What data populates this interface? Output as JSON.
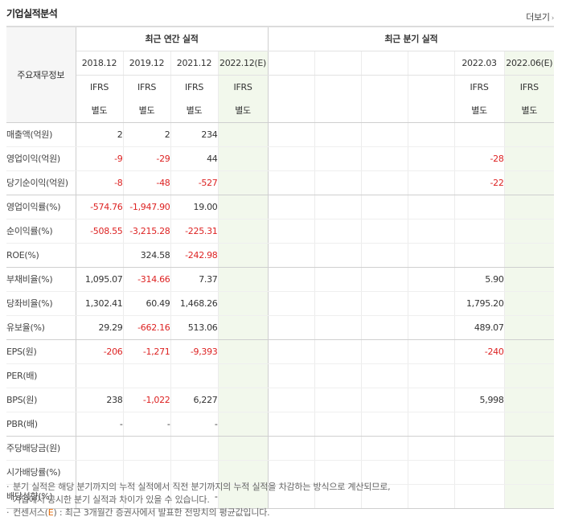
{
  "section": {
    "title": "기업실적분석",
    "more_label": "더보기",
    "more_icon": "chevron-right-icon"
  },
  "header": {
    "metric_col_label": "주요재무정보",
    "annual_group_label": "최근 연간 실적",
    "quarterly_group_label": "최근 분기 실적",
    "annual_periods": [
      "2018.12",
      "2019.12",
      "2021.12",
      "2022.12(E)"
    ],
    "quarterly_periods": [
      "",
      "",
      "",
      "",
      "2022.03",
      "2022.06(E)"
    ],
    "annual_ifrs": [
      {
        "top": "IFRS",
        "bottom": "별도"
      },
      {
        "top": "IFRS",
        "bottom": "별도"
      },
      {
        "top": "IFRS",
        "bottom": "별도"
      },
      {
        "top": "IFRS",
        "bottom": "별도"
      }
    ],
    "quarterly_ifrs": [
      {
        "top": "",
        "bottom": ""
      },
      {
        "top": "",
        "bottom": ""
      },
      {
        "top": "",
        "bottom": ""
      },
      {
        "top": "",
        "bottom": ""
      },
      {
        "top": "IFRS",
        "bottom": "별도"
      },
      {
        "top": "IFRS",
        "bottom": "별도"
      }
    ]
  },
  "rows": [
    {
      "label": "매출액(억원)",
      "annual": [
        "2",
        "2",
        "234",
        ""
      ],
      "quarterly": [
        "",
        "",
        "",
        "",
        "",
        ""
      ]
    },
    {
      "label": "영업이익(억원)",
      "annual": [
        "-9",
        "-29",
        "44",
        ""
      ],
      "quarterly": [
        "",
        "",
        "",
        "",
        "-28",
        ""
      ]
    },
    {
      "label": "당기순이익(억원)",
      "annual": [
        "-8",
        "-48",
        "-527",
        ""
      ],
      "quarterly": [
        "",
        "",
        "",
        "",
        "-22",
        ""
      ]
    },
    {
      "label": "영업이익률(%)",
      "annual": [
        "-574.76",
        "-1,947.90",
        "19.00",
        ""
      ],
      "quarterly": [
        "",
        "",
        "",
        "",
        "",
        ""
      ]
    },
    {
      "label": "순이익률(%)",
      "annual": [
        "-508.55",
        "-3,215.28",
        "-225.31",
        ""
      ],
      "quarterly": [
        "",
        "",
        "",
        "",
        "",
        ""
      ]
    },
    {
      "label": "ROE(%)",
      "annual": [
        "",
        "324.58",
        "-242.98",
        ""
      ],
      "quarterly": [
        "",
        "",
        "",
        "",
        "",
        ""
      ]
    },
    {
      "label": "부채비율(%)",
      "annual": [
        "1,095.07",
        "-314.66",
        "7.37",
        ""
      ],
      "quarterly": [
        "",
        "",
        "",
        "",
        "5.90",
        ""
      ]
    },
    {
      "label": "당좌비율(%)",
      "annual": [
        "1,302.41",
        "60.49",
        "1,468.26",
        ""
      ],
      "quarterly": [
        "",
        "",
        "",
        "",
        "1,795.20",
        ""
      ]
    },
    {
      "label": "유보율(%)",
      "annual": [
        "29.29",
        "-662.16",
        "513.06",
        ""
      ],
      "quarterly": [
        "",
        "",
        "",
        "",
        "489.07",
        ""
      ]
    },
    {
      "label": "EPS(원)",
      "annual": [
        "-206",
        "-1,271",
        "-9,393",
        ""
      ],
      "quarterly": [
        "",
        "",
        "",
        "",
        "-240",
        ""
      ]
    },
    {
      "label": "PER(배)",
      "annual": [
        "",
        "",
        "",
        ""
      ],
      "quarterly": [
        "",
        "",
        "",
        "",
        "",
        ""
      ]
    },
    {
      "label": "BPS(원)",
      "annual": [
        "238",
        "-1,022",
        "6,227",
        ""
      ],
      "quarterly": [
        "",
        "",
        "",
        "",
        "5,998",
        ""
      ]
    },
    {
      "label": "PBR(배)",
      "annual": [
        "-",
        "-",
        "-",
        ""
      ],
      "quarterly": [
        "",
        "",
        "",
        "",
        "",
        ""
      ]
    },
    {
      "label": "주당배당금(원)",
      "annual": [
        "",
        "",
        "",
        ""
      ],
      "quarterly": [
        "",
        "",
        "",
        "",
        "",
        ""
      ]
    },
    {
      "label": "시가배당률(%)",
      "annual": [
        "",
        "",
        "",
        ""
      ],
      "quarterly": [
        "",
        "",
        "",
        "",
        "",
        ""
      ]
    },
    {
      "label": "배당성향(%)",
      "annual": [
        "-",
        "-",
        "-",
        ""
      ],
      "quarterly": [
        "",
        "",
        "",
        "",
        "",
        ""
      ]
    }
  ],
  "notes": {
    "line1": "분기 실적은 해당 분기까지의 누적 실적에서 직전 분기까지의 누적 실적을 차감하는 방식으로 계산되므로,",
    "line2": "기업에서 공시한 분기 실적과 차이가 있을 수 있습니다.",
    "line3_prefix": "컨센서스(",
    "line3_e": "E",
    "line3_suffix": ") : 최근 3개월간 증권사에서 발표한 전망치의 평균값입니다."
  },
  "colors": {
    "negative": "#dd2222",
    "estimate_bg": "#f2f8ec",
    "ifrs_orange": "#e36c0a"
  }
}
